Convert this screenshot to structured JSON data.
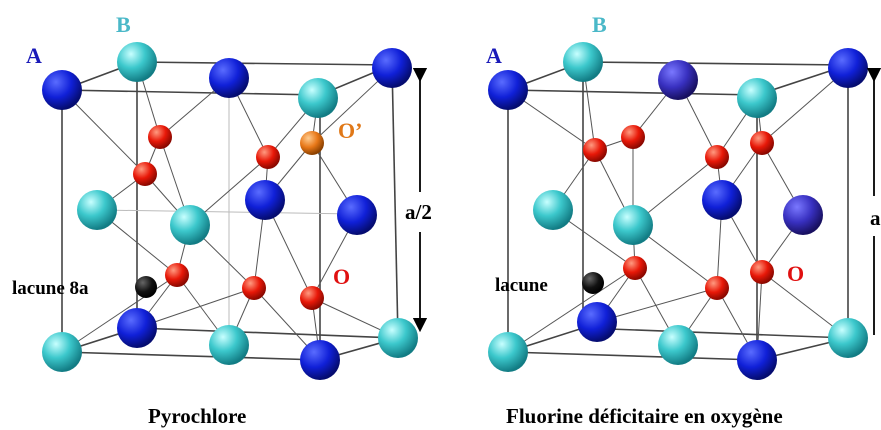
{
  "left_panel": {
    "caption": "Pyrochlore",
    "label_A": "A",
    "label_B": "B",
    "label_O_prime": "O’",
    "label_O": "O",
    "label_vacancy": "lacune 8a",
    "label_dimension": "a/2"
  },
  "right_panel": {
    "caption": "Fluorine déficitaire en oxygène",
    "label_A": "A",
    "label_B": "B",
    "label_O": "O",
    "label_vacancy": "lacune",
    "label_dimension_partial": "a"
  },
  "colors": {
    "A_cation": "#1020d8",
    "B_cation": "#3cc8cc",
    "O_anion": "#e81808",
    "O_prime_anion": "#e87818",
    "vacancy": "#000000",
    "label_A": "#1a1ab8",
    "label_B": "#4ab8c8",
    "label_O": "#e01010",
    "label_O_prime": "#e07818",
    "edges": "#444444"
  }
}
